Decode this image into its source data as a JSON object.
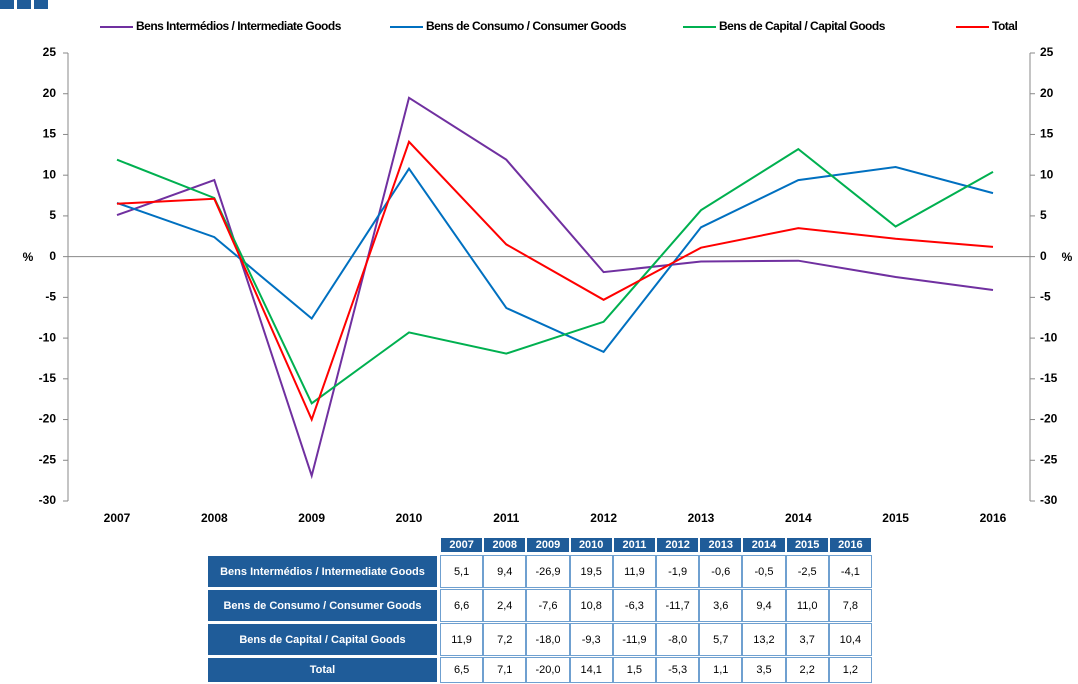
{
  "chart_data": {
    "type": "line",
    "categories": [
      "2007",
      "2008",
      "2009",
      "2010",
      "2011",
      "2012",
      "2013",
      "2014",
      "2015",
      "2016"
    ],
    "series": [
      {
        "name": "Bens Intermédios / Intermediate Goods",
        "color": "#7030a0",
        "values": [
          5.1,
          9.4,
          -26.9,
          19.5,
          11.9,
          -1.9,
          -0.6,
          -0.5,
          -2.5,
          -4.1
        ],
        "value_labels": [
          "5,1",
          "9,4",
          "-26,9",
          "19,5",
          "11,9",
          "-1,9",
          "-0,6",
          "-0,5",
          "-2,5",
          "-4,1"
        ]
      },
      {
        "name": "Bens de Consumo / Consumer Goods",
        "color": "#0070c0",
        "values": [
          6.6,
          2.4,
          -7.6,
          10.8,
          -6.3,
          -11.7,
          3.6,
          9.4,
          11.0,
          7.8
        ],
        "value_labels": [
          "6,6",
          "2,4",
          "-7,6",
          "10,8",
          "-6,3",
          "-11,7",
          "3,6",
          "9,4",
          "11,0",
          "7,8"
        ]
      },
      {
        "name": "Bens de Capital / Capital Goods",
        "color": "#00b050",
        "values": [
          11.9,
          7.2,
          -18.0,
          -9.3,
          -11.9,
          -8.0,
          5.7,
          13.2,
          3.7,
          10.4
        ],
        "value_labels": [
          "11,9",
          "7,2",
          "-18,0",
          "-9,3",
          "-11,9",
          "-8,0",
          "5,7",
          "13,2",
          "3,7",
          "10,4"
        ]
      },
      {
        "name": "Total",
        "color": "#ff0000",
        "values": [
          6.5,
          7.1,
          -20.0,
          14.1,
          1.5,
          -5.3,
          1.1,
          3.5,
          2.2,
          1.2
        ],
        "value_labels": [
          "6,5",
          "7,1",
          "-20,0",
          "14,1",
          "1,5",
          "-5,3",
          "1,1",
          "3,5",
          "2,2",
          "1,2"
        ]
      }
    ],
    "y_label": "%",
    "ylim": [
      -30,
      25
    ],
    "yticks": [
      -30,
      -25,
      -20,
      -15,
      -10,
      -5,
      0,
      5,
      10,
      15,
      20,
      25
    ],
    "y2lim": [
      -30,
      25
    ],
    "y2ticks": [
      -30,
      -25,
      -20,
      -15,
      -10,
      -5,
      0,
      5,
      10,
      15,
      20,
      25
    ],
    "legend": "top"
  }
}
